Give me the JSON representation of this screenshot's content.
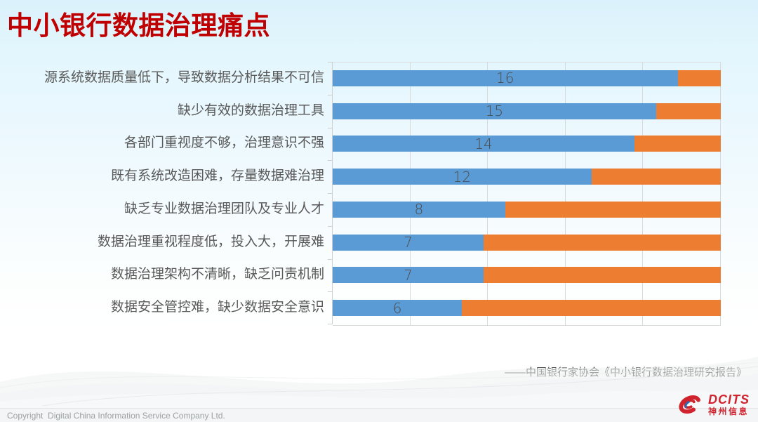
{
  "slide": {
    "title": "中小银行数据治理痛点",
    "source_citation": "——中国银行家协会《中小银行数据治理研究报告》",
    "footer_copyright": "Copyright  Digital China Information Service Company Ltd.",
    "logo": {
      "brand": "DCITS",
      "brand_cn": "神州信息"
    }
  },
  "chart_data": {
    "type": "bar",
    "orientation": "horizontal",
    "stacked": true,
    "title": "",
    "categories": [
      "源系统数据质量低下，导致数据分析结果不可信",
      "缺少有效的数据治理工具",
      "各部门重视度不够，治理意识不强",
      "既有系统改造困难，存量数据难治理",
      "缺乏专业数据治理团队及专业人才",
      "数据治理重视程度低，投入大，开展难",
      "数据治理架构不清晰，缺乏问责机制",
      "数据安全管控难，缺少数据安全意识"
    ],
    "series": [
      {
        "name": "blue-segment",
        "color": "#5b9bd5",
        "values": [
          16,
          15,
          14,
          12,
          8,
          7,
          7,
          6
        ]
      },
      {
        "name": "orange-segment",
        "color": "#ed7d31",
        "values": [
          2,
          3,
          4,
          6,
          10,
          11,
          11,
          12
        ]
      }
    ],
    "bar_total": 18,
    "xlim": [
      0,
      18
    ],
    "value_labels": [
      16,
      15,
      14,
      12,
      8,
      7,
      7,
      6
    ],
    "gridlines": {
      "vertical_count": 6,
      "color": "#d9d9d9"
    },
    "legend": "none"
  },
  "colors": {
    "title_red": "#c00000",
    "category_label_gray": "#595959",
    "value_label_gray": "#4d4d4d",
    "axis_gray": "#d9d9d9",
    "logo_red": "#d0232e",
    "background_top_blue": "#dbf1fb"
  }
}
